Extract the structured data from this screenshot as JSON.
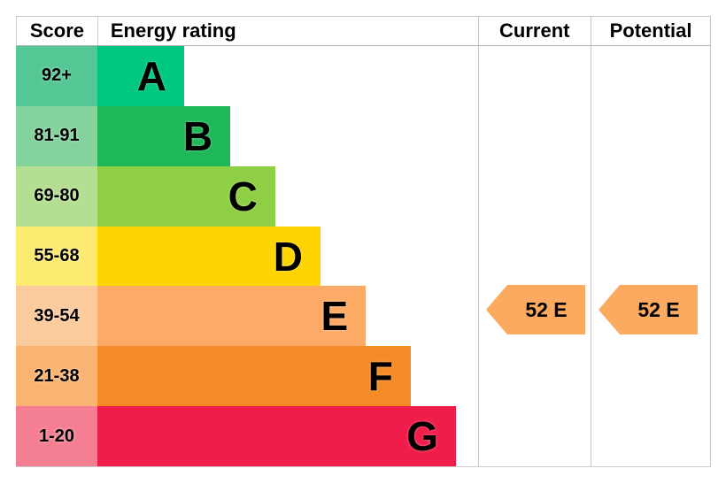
{
  "header": {
    "score_label": "Score",
    "rating_label": "Energy rating",
    "current_label": "Current",
    "potential_label": "Potential"
  },
  "chart_data": {
    "type": "bar",
    "title": "Energy rating",
    "description": "EPC energy efficiency band chart with score ranges A-G",
    "bands": [
      {
        "letter": "A",
        "score_range": "92+",
        "bar_color": "#00c881",
        "score_cell_color": "#55c795",
        "bar_width_pct": 22.8
      },
      {
        "letter": "B",
        "score_range": "81-91",
        "bar_color": "#1eb858",
        "score_cell_color": "#84d29c",
        "bar_width_pct": 34.9
      },
      {
        "letter": "C",
        "score_range": "69-80",
        "bar_color": "#8ecf44",
        "score_cell_color": "#b4df92",
        "bar_width_pct": 46.7
      },
      {
        "letter": "D",
        "score_range": "55-68",
        "bar_color": "#fed402",
        "score_cell_color": "#fdea71",
        "bar_width_pct": 58.6
      },
      {
        "letter": "E",
        "score_range": "39-54",
        "bar_color": "#fcaa65",
        "score_cell_color": "#fccb9d",
        "bar_width_pct": 70.5
      },
      {
        "letter": "F",
        "score_range": "21-38",
        "bar_color": "#f48b27",
        "score_cell_color": "#fab471",
        "bar_width_pct": 82.3
      },
      {
        "letter": "G",
        "score_range": "1-20",
        "bar_color": "#f01c49",
        "score_cell_color": "#f47f93",
        "bar_width_pct": 94.2
      }
    ],
    "current": {
      "label": "52 E",
      "value": 52,
      "band": "E",
      "arrow_color": "#fbaa60"
    },
    "potential": {
      "label": "52 E",
      "value": 52,
      "band": "E",
      "arrow_color": "#fbaa60"
    }
  }
}
